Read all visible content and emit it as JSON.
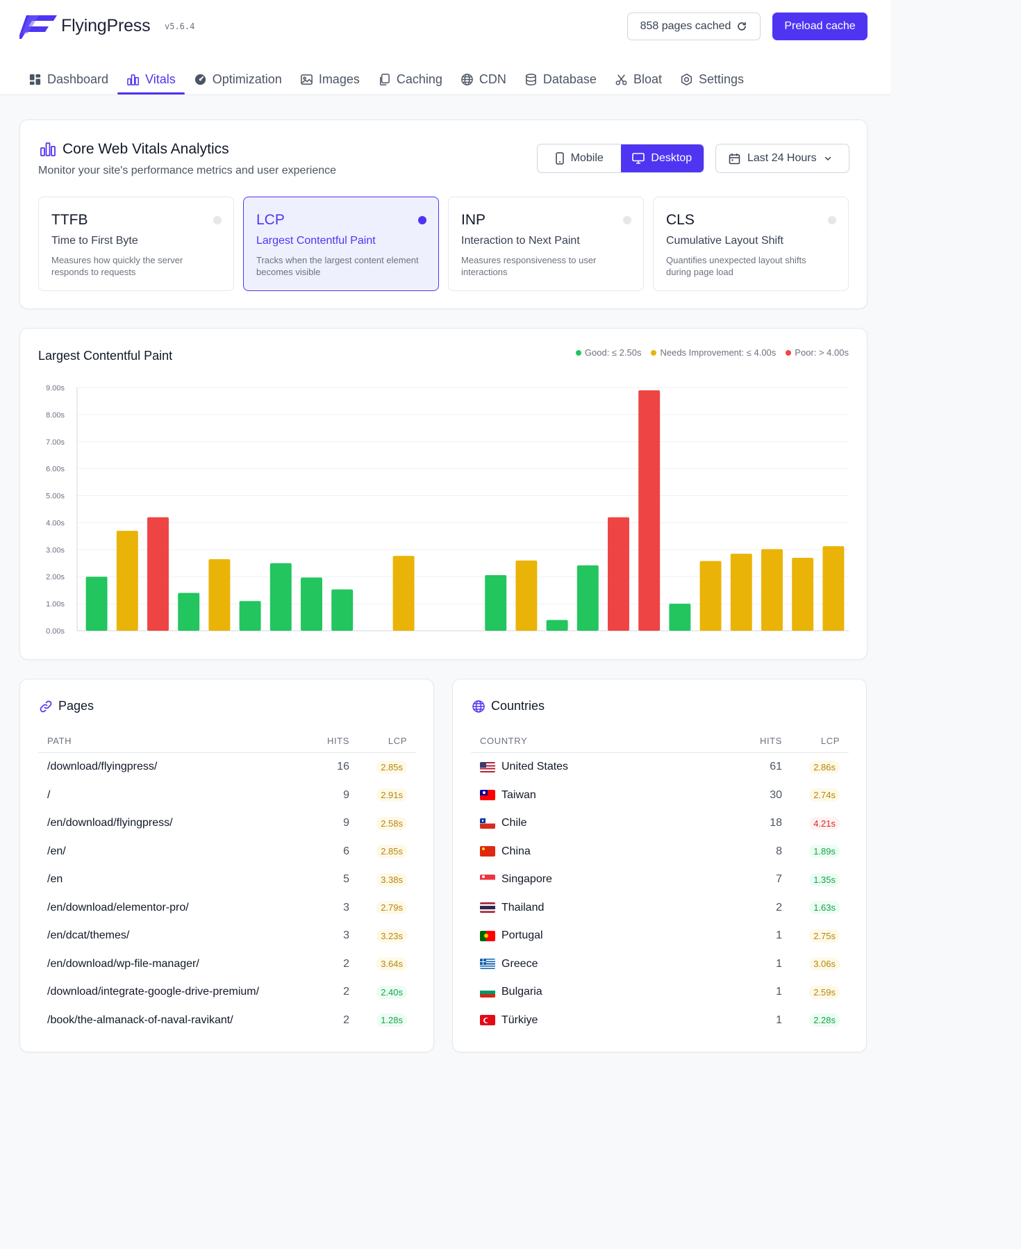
{
  "app": {
    "name": "FlyingPress",
    "version": "v5.6.4",
    "cached_label": "858 pages cached",
    "preload_label": "Preload cache",
    "brand_color": "#4f35f2"
  },
  "tabs": [
    {
      "label": "Dashboard",
      "icon": "dashboard-icon",
      "active": false
    },
    {
      "label": "Vitals",
      "icon": "bar-chart-icon",
      "active": true
    },
    {
      "label": "Optimization",
      "icon": "gauge-icon",
      "active": false
    },
    {
      "label": "Images",
      "icon": "image-icon",
      "active": false
    },
    {
      "label": "Caching",
      "icon": "copy-icon",
      "active": false
    },
    {
      "label": "CDN",
      "icon": "globe-icon",
      "active": false
    },
    {
      "label": "Database",
      "icon": "database-icon",
      "active": false
    },
    {
      "label": "Bloat",
      "icon": "scissors-icon",
      "active": false
    },
    {
      "label": "Settings",
      "icon": "settings-icon",
      "active": false
    }
  ],
  "vitals": {
    "title": "Core Web Vitals Analytics",
    "subtitle": "Monitor your site's performance metrics and user experience",
    "device_mobile": "Mobile",
    "device_desktop": "Desktop",
    "device_selected": "Desktop",
    "range": "Last 24 Hours",
    "metrics": [
      {
        "abbr": "TTFB",
        "name": "Time to First Byte",
        "desc": "Measures how quickly the server responds to requests",
        "active": false
      },
      {
        "abbr": "LCP",
        "name": "Largest Contentful Paint",
        "desc": "Tracks when the largest content element becomes visible",
        "active": true
      },
      {
        "abbr": "INP",
        "name": "Interaction to Next Paint",
        "desc": "Measures responsiveness to user interactions",
        "active": false
      },
      {
        "abbr": "CLS",
        "name": "Cumulative Layout Shift",
        "desc": "Quantifies unexpected layout shifts during page load",
        "active": false
      }
    ]
  },
  "chart_data": {
    "type": "bar",
    "title": "Largest Contentful Paint",
    "legend": [
      {
        "label": "Good: ≤ 2.50s",
        "color": "#22c55e"
      },
      {
        "label": "Needs Improvement: ≤ 4.00s",
        "color": "#eab308"
      },
      {
        "label": "Poor: > 4.00s",
        "color": "#ef4444"
      }
    ],
    "y_ticks": [
      "0.00s",
      "1.00s",
      "2.00s",
      "3.00s",
      "4.00s",
      "5.00s",
      "6.00s",
      "7.00s",
      "8.00s",
      "9.00s"
    ],
    "ylim": [
      0,
      9
    ],
    "thresholds": {
      "good": 2.5,
      "needs_improvement": 4.0
    },
    "colors": {
      "good": "#22c55e",
      "ni": "#eab308",
      "poor": "#ef4444"
    },
    "values": [
      2.0,
      3.7,
      4.2,
      1.4,
      2.65,
      1.1,
      2.5,
      1.97,
      1.53,
      null,
      2.77,
      null,
      null,
      2.06,
      2.6,
      0.4,
      2.42,
      4.2,
      8.9,
      1.0,
      2.58,
      2.85,
      3.02,
      2.7,
      3.13
    ],
    "grid": true
  },
  "pages": {
    "title": "Pages",
    "headers": {
      "path": "PATH",
      "hits": "HITS",
      "lcp": "LCP"
    },
    "rows": [
      {
        "path": "/download/flyingpress/",
        "hits": "16",
        "lcp": "2.85s",
        "status": "ni"
      },
      {
        "path": "/",
        "hits": "9",
        "lcp": "2.91s",
        "status": "ni"
      },
      {
        "path": "/en/download/flyingpress/",
        "hits": "9",
        "lcp": "2.58s",
        "status": "ni"
      },
      {
        "path": "/en/",
        "hits": "6",
        "lcp": "2.85s",
        "status": "ni"
      },
      {
        "path": "/en",
        "hits": "5",
        "lcp": "3.38s",
        "status": "ni"
      },
      {
        "path": "/en/download/elementor-pro/",
        "hits": "3",
        "lcp": "2.79s",
        "status": "ni"
      },
      {
        "path": "/en/dcat/themes/",
        "hits": "3",
        "lcp": "3.23s",
        "status": "ni"
      },
      {
        "path": "/en/download/wp-file-manager/",
        "hits": "2",
        "lcp": "3.64s",
        "status": "ni"
      },
      {
        "path": "/download/integrate-google-drive-premium/",
        "hits": "2",
        "lcp": "2.40s",
        "status": "good"
      },
      {
        "path": "/book/the-almanack-of-naval-ravikant/",
        "hits": "2",
        "lcp": "1.28s",
        "status": "good"
      }
    ]
  },
  "countries": {
    "title": "Countries",
    "headers": {
      "country": "COUNTRY",
      "hits": "HITS",
      "lcp": "LCP"
    },
    "rows": [
      {
        "country": "United States",
        "flag": "us",
        "hits": "61",
        "lcp": "2.86s",
        "status": "ni"
      },
      {
        "country": "Taiwan",
        "flag": "tw",
        "hits": "30",
        "lcp": "2.74s",
        "status": "ni"
      },
      {
        "country": "Chile",
        "flag": "cl",
        "hits": "18",
        "lcp": "4.21s",
        "status": "poor"
      },
      {
        "country": "China",
        "flag": "cn",
        "hits": "8",
        "lcp": "1.89s",
        "status": "good"
      },
      {
        "country": "Singapore",
        "flag": "sg",
        "hits": "7",
        "lcp": "1.35s",
        "status": "good"
      },
      {
        "country": "Thailand",
        "flag": "th",
        "hits": "2",
        "lcp": "1.63s",
        "status": "good"
      },
      {
        "country": "Portugal",
        "flag": "pt",
        "hits": "1",
        "lcp": "2.75s",
        "status": "ni"
      },
      {
        "country": "Greece",
        "flag": "gr",
        "hits": "1",
        "lcp": "3.06s",
        "status": "ni"
      },
      {
        "country": "Bulgaria",
        "flag": "bg",
        "hits": "1",
        "lcp": "2.59s",
        "status": "ni"
      },
      {
        "country": "Türkiye",
        "flag": "tr",
        "hits": "1",
        "lcp": "2.28s",
        "status": "good"
      }
    ]
  }
}
